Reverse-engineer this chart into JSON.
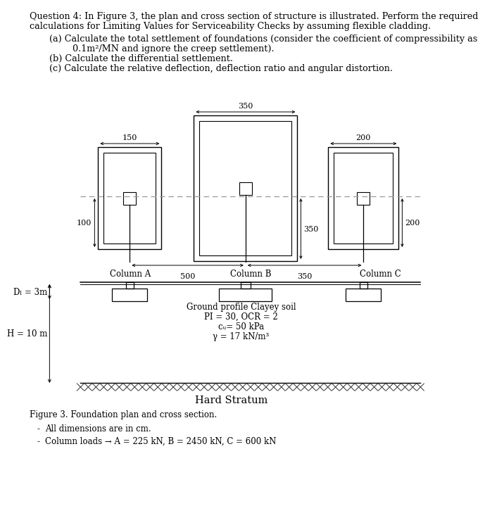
{
  "bg_color": "#ffffff",
  "lc": "#000000",
  "dash_color": "#999999",
  "header_line1": "Question 4: In Figure 3, the plan and cross section of structure is illustrated. Perform the required",
  "header_line2": "calculations for Limiting Values for Serviceability Checks by assuming flexible cladding.",
  "qa_line1": "(a) Calculate the total settlement of foundations (consider the coefficient of compressibility as",
  "qa_line2": "    0.1m²/MN and ignore the creep settlement).",
  "qb": "(b) Calculate the differential settlement.",
  "qc": "(c) Calculate the relative deflection, deflection ratio and angular distortion.",
  "col_a_label": "Column A",
  "col_b_label": "Column B",
  "col_c_label": "Column C",
  "dim_150": "150",
  "dim_100": "100",
  "dim_350_top": "350",
  "dim_350_side": "350",
  "dim_200_top": "200",
  "dim_200_side": "200",
  "dim_500": "500",
  "dim_350_bot": "350",
  "ground_text_line1": "Ground profile Clayey soil",
  "ground_text_line2": "PI = 30, OCR = 2",
  "ground_text_line3": "cᵤ= 50 kPa",
  "ground_text_line4": "γ = 17 kN/m³",
  "df_label": "Dₗ = 3m",
  "h_label": "H = 10 m",
  "hard_stratum": "Hard Stratum",
  "fig_caption": "Figure 3. Foundation plan and cross section.",
  "note1": "All dimensions are in cm.",
  "note2": "Column loads → A = 225 kN, B = 2450 kN, C = 600 kN"
}
